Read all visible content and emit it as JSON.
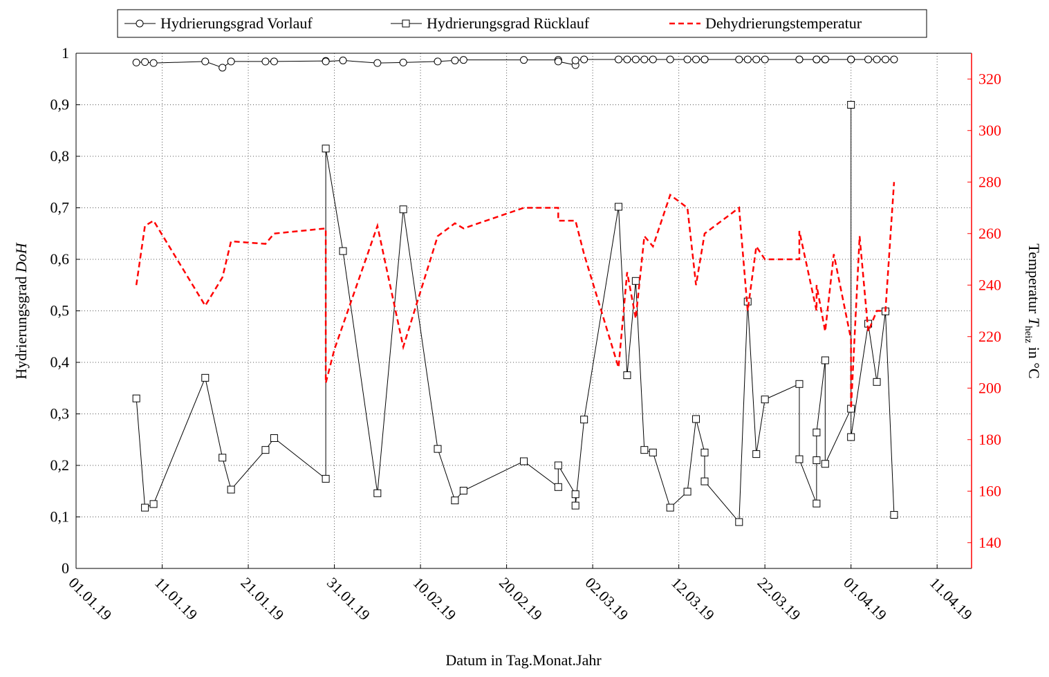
{
  "chart_data": {
    "type": "line",
    "xlabel": "Datum in Tag.Monat.Jahr",
    "ylabel": [
      "Hydrierungsgrad ",
      "DoH"
    ],
    "y2label": [
      "Temperatur ",
      "T",
      "heiz",
      " in °C"
    ],
    "xlim": [
      "2019-01-01",
      "2019-04-15"
    ],
    "xticks": [
      {
        "value": "2019-01-01",
        "label": "01.01.19"
      },
      {
        "value": "2019-01-11",
        "label": "11.01.19"
      },
      {
        "value": "2019-01-21",
        "label": "21.01.19"
      },
      {
        "value": "2019-01-31",
        "label": "31.01.19"
      },
      {
        "value": "2019-02-10",
        "label": "10.02.19"
      },
      {
        "value": "2019-02-20",
        "label": "20.02.19"
      },
      {
        "value": "2019-03-02",
        "label": "02.03.19"
      },
      {
        "value": "2019-03-12",
        "label": "12.03.19"
      },
      {
        "value": "2019-03-22",
        "label": "22.03.19"
      },
      {
        "value": "2019-04-01",
        "label": "01.04.19"
      },
      {
        "value": "2019-04-11",
        "label": "11.04.19"
      }
    ],
    "ylim": [
      0,
      1
    ],
    "yticks": [
      0,
      {
        "value": 0.1,
        "label": "0,1"
      },
      {
        "value": 0.2,
        "label": "0,2"
      },
      {
        "value": 0.3,
        "label": "0,3"
      },
      {
        "value": 0.4,
        "label": "0,4"
      },
      {
        "value": 0.5,
        "label": "0,5"
      },
      {
        "value": 0.6,
        "label": "0,6"
      },
      {
        "value": 0.7,
        "label": "0,7"
      },
      {
        "value": 0.8,
        "label": "0,8"
      },
      {
        "value": 0.9,
        "label": "0,9"
      },
      1
    ],
    "y2lim": [
      130,
      330
    ],
    "y2ticks": [
      140,
      160,
      180,
      200,
      220,
      240,
      260,
      280,
      300,
      320
    ],
    "grid": true,
    "x": [
      "2019-01-08",
      "2019-01-09",
      "2019-01-10",
      "2019-01-16",
      "2019-01-18",
      "2019-01-19",
      "2019-01-23",
      "2019-01-24",
      "2019-01-30",
      "2019-01-30",
      "2019-02-01",
      "2019-02-05",
      "2019-02-08",
      "2019-02-12",
      "2019-02-14",
      "2019-02-15",
      "2019-02-22",
      "2019-02-26",
      "2019-02-26",
      "2019-02-28",
      "2019-02-28",
      "2019-03-01",
      "2019-03-05",
      "2019-03-06",
      "2019-03-07",
      "2019-03-08",
      "2019-03-09",
      "2019-03-11",
      "2019-03-13",
      "2019-03-14",
      "2019-03-15",
      "2019-03-15",
      "2019-03-19",
      "2019-03-20",
      "2019-03-21",
      "2019-03-22",
      "2019-03-26",
      "2019-03-26",
      "2019-03-28",
      "2019-03-28",
      "2019-03-28",
      "2019-03-29",
      "2019-03-29",
      "2019-04-01",
      "2019-04-01",
      "2019-04-01",
      "2019-04-03",
      "2019-04-04",
      "2019-04-05",
      "2019-04-06"
    ],
    "series": [
      {
        "name": "Hydrierungsgrad Vorlauf",
        "color": "#000000",
        "marker": "circle",
        "values": [
          0.982,
          0.983,
          0.981,
          0.984,
          0.972,
          0.984,
          0.984,
          0.984,
          0.985,
          0.984,
          0.986,
          0.981,
          0.982,
          0.984,
          0.986,
          0.987,
          0.987,
          0.987,
          0.984,
          0.977,
          0.986,
          0.988,
          0.988,
          0.988,
          0.988,
          0.988,
          0.988,
          0.988,
          0.988,
          0.988,
          0.988,
          0.988,
          0.988,
          0.988,
          0.988,
          0.988,
          0.988,
          0.988,
          0.988,
          0.988,
          0.988,
          0.988,
          0.988,
          0.988,
          0.988,
          0.988,
          0.988,
          0.988,
          0.988,
          0.988
        ]
      },
      {
        "name": "Hydrierungsgrad Rücklauf",
        "color": "#000000",
        "marker": "square",
        "values": [
          0.33,
          0.118,
          0.125,
          0.37,
          0.215,
          0.153,
          0.23,
          0.253,
          0.174,
          0.815,
          0.616,
          0.146,
          0.697,
          0.232,
          0.132,
          0.151,
          0.208,
          0.158,
          0.2,
          0.144,
          0.122,
          0.289,
          0.702,
          0.375,
          0.558,
          0.23,
          0.225,
          0.118,
          0.149,
          0.29,
          0.225,
          0.169,
          0.09,
          0.518,
          0.222,
          0.328,
          0.358,
          0.212,
          0.126,
          0.21,
          0.264,
          0.404,
          0.203,
          0.31,
          0.9,
          0.255,
          0.475,
          0.362,
          0.499,
          0.104
        ]
      },
      {
        "name": "Dehydrierungstemperatur",
        "color": "#ff0000",
        "dashed": true,
        "axis": "y2",
        "x": [
          "2019-01-08",
          "2019-01-09",
          "2019-01-10",
          "2019-01-16",
          "2019-01-18",
          "2019-01-19",
          "2019-01-23",
          "2019-01-24",
          "2019-01-30",
          "2019-01-30",
          "2019-01-31",
          "2019-02-05",
          "2019-02-08",
          "2019-02-12",
          "2019-02-14",
          "2019-02-15",
          "2019-02-22",
          "2019-02-26",
          "2019-02-26",
          "2019-02-28",
          "2019-03-01",
          "2019-03-05",
          "2019-03-06",
          "2019-03-07",
          "2019-03-08",
          "2019-03-09",
          "2019-03-11",
          "2019-03-13",
          "2019-03-14",
          "2019-03-15",
          "2019-03-19",
          "2019-03-20",
          "2019-03-21",
          "2019-03-22",
          "2019-03-26",
          "2019-03-26",
          "2019-03-28",
          "2019-03-28",
          "2019-03-29",
          "2019-03-30",
          "2019-04-01",
          "2019-04-01",
          "2019-04-02",
          "2019-04-03",
          "2019-04-04",
          "2019-04-05",
          "2019-04-06"
        ],
        "values": [
          240,
          263,
          265,
          232,
          243,
          257,
          256,
          260,
          262,
          202,
          215,
          263,
          216,
          259,
          264,
          262,
          270,
          270,
          265,
          265,
          252,
          208,
          245,
          227,
          259,
          255,
          275,
          270,
          240,
          260,
          270,
          230,
          255,
          250,
          250,
          261,
          230,
          240,
          222,
          252,
          219,
          192,
          259,
          222,
          230,
          230,
          280
        ]
      }
    ]
  }
}
